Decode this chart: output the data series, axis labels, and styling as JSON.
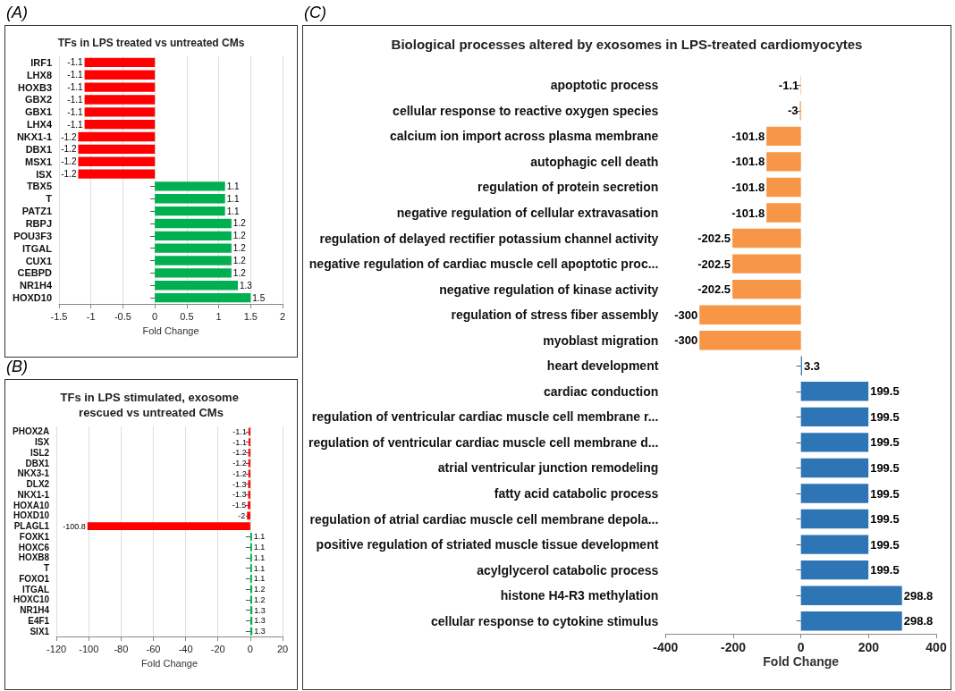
{
  "chart_data": [
    {
      "type": "bar",
      "orientation": "horizontal",
      "annotations": [
        "(A)"
      ],
      "title": "TFs in LPS treated vs untreated CMs",
      "xlabel": "Fold Change",
      "categories": [
        "IRF1",
        "LHX8",
        "HOXB3",
        "GBX2",
        "GBX1",
        "LHX4",
        "NKX1-1",
        "DBX1",
        "MSX1",
        "ISX",
        "TBX5",
        "T",
        "PATZ1",
        "RBPJ",
        "POU3F3",
        "ITGAL",
        "CUX1",
        "CEBPD",
        "NR1H4",
        "HOXD10"
      ],
      "values": [
        -1.1,
        -1.1,
        -1.1,
        -1.1,
        -1.1,
        -1.1,
        -1.2,
        -1.2,
        -1.2,
        -1.2,
        1.1,
        1.1,
        1.1,
        1.2,
        1.2,
        1.2,
        1.2,
        1.2,
        1.3,
        1.5
      ],
      "colors": [
        "#ff0000",
        "#ff0000",
        "#ff0000",
        "#ff0000",
        "#ff0000",
        "#ff0000",
        "#ff0000",
        "#ff0000",
        "#ff0000",
        "#ff0000",
        "#00b050",
        "#00b050",
        "#00b050",
        "#00b050",
        "#00b050",
        "#00b050",
        "#00b050",
        "#00b050",
        "#00b050",
        "#00b050"
      ],
      "xlim": [
        -1.5,
        2
      ],
      "xticks": [
        -1.5,
        -1,
        -0.5,
        0,
        0.5,
        1,
        1.5,
        2
      ],
      "grid": "x",
      "data_labels": true
    },
    {
      "type": "bar",
      "orientation": "horizontal",
      "annotations": [
        "(B)"
      ],
      "title": "TFs in LPS stimulated, exosome rescued vs untreated CMs",
      "xlabel": "Fold Change",
      "categories": [
        "PHOX2A",
        "ISX",
        "ISL2",
        "DBX1",
        "NKX3-1",
        "DLX2",
        "NKX1-1",
        "HOXA10",
        "HOXD10",
        "PLAGL1",
        "FOXK1",
        "HOXC6",
        "HOXB8",
        "T",
        "FOXO1",
        "ITGAL",
        "HOXC10",
        "NR1H4",
        "E4F1",
        "SIX1"
      ],
      "values": [
        -1.1,
        -1.1,
        -1.2,
        -1.2,
        -1.2,
        -1.3,
        -1.3,
        -1.5,
        -2,
        -100.8,
        1.1,
        1.1,
        1.1,
        1.1,
        1.1,
        1.2,
        1.2,
        1.3,
        1.3,
        1.3
      ],
      "colors": [
        "#ff0000",
        "#ff0000",
        "#ff0000",
        "#ff0000",
        "#ff0000",
        "#ff0000",
        "#ff0000",
        "#ff0000",
        "#ff0000",
        "#ff0000",
        "#00b050",
        "#00b050",
        "#00b050",
        "#00b050",
        "#00b050",
        "#00b050",
        "#00b050",
        "#00b050",
        "#00b050",
        "#00b050"
      ],
      "xlim": [
        -120,
        20
      ],
      "xticks": [
        -120,
        -100,
        -80,
        -60,
        -40,
        -20,
        0,
        20
      ],
      "grid": "x",
      "data_labels": true
    },
    {
      "type": "bar",
      "orientation": "horizontal",
      "annotations": [
        "(C)"
      ],
      "title": "Biological processes altered by exosomes in LPS-treated cardiomyocytes",
      "xlabel": "Fold Change",
      "categories": [
        "apoptotic process",
        "cellular response to reactive oxygen species",
        "calcium ion import across plasma membrane",
        "autophagic cell death",
        "regulation of protein secretion",
        "negative regulation of cellular extravasation",
        "regulation of delayed rectifier potassium channel activity",
        "negative regulation of cardiac muscle cell apoptotic proc...",
        "negative regulation of kinase activity",
        "regulation of stress fiber assembly",
        "myoblast migration",
        "heart development",
        "cardiac conduction",
        "regulation of ventricular cardiac muscle cell membrane r...",
        "regulation of ventricular cardiac muscle cell membrane d...",
        "atrial ventricular junction remodeling",
        "fatty acid catabolic process",
        "regulation of atrial cardiac muscle cell membrane depola...",
        "positive regulation of striated muscle tissue development",
        "acylglycerol catabolic process",
        "histone H4-R3 methylation",
        "cellular response to cytokine stimulus"
      ],
      "values": [
        -1.1,
        -3,
        -101.8,
        -101.8,
        -101.8,
        -101.8,
        -202.5,
        -202.5,
        -202.5,
        -300,
        -300,
        3.3,
        199.5,
        199.5,
        199.5,
        199.5,
        199.5,
        199.5,
        199.5,
        199.5,
        298.8,
        298.8
      ],
      "colors": [
        "#f79646",
        "#f79646",
        "#f79646",
        "#f79646",
        "#f79646",
        "#f79646",
        "#f79646",
        "#f79646",
        "#f79646",
        "#f79646",
        "#f79646",
        "#2e75b6",
        "#2e75b6",
        "#2e75b6",
        "#2e75b6",
        "#2e75b6",
        "#2e75b6",
        "#2e75b6",
        "#2e75b6",
        "#2e75b6",
        "#2e75b6",
        "#2e75b6"
      ],
      "xlim": [
        -400,
        400
      ],
      "xticks": [
        -400,
        -200,
        0,
        200,
        400
      ],
      "grid": false,
      "data_labels": true
    }
  ]
}
